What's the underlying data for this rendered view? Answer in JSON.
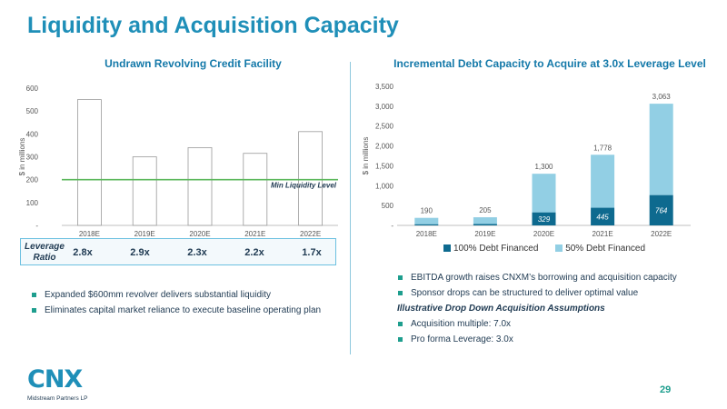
{
  "page": {
    "title": "Liquidity and Acquisition Capacity",
    "page_number": "29",
    "logo": {
      "text": "CNX",
      "subtitle": "Midstream Partners LP"
    }
  },
  "leverage": {
    "label": "Leverage Ratio",
    "values": [
      "2.8x",
      "2.9x",
      "2.3x",
      "2.2x",
      "1.7x"
    ]
  },
  "left_bullets": [
    "Expanded $600mm revolver delivers substantial liquidity",
    "Eliminates capital market reliance to execute baseline operating plan"
  ],
  "right_bullets": {
    "items": [
      "EBITDA growth raises CNXM’s borrowing and acquisition capacity",
      "Sponsor drops can be structured to deliver optimal value"
    ],
    "assumptions_heading": "Illustrative Drop Down Acquisition Assumptions",
    "assumptions": [
      "Acquisition multiple: 7.0x",
      "Pro forma Leverage: 3.0x"
    ]
  },
  "colors": {
    "brand": "#1f8fb8",
    "chart_title": "#1479a9",
    "bar_outline": "#9a9a9a",
    "min_line": "#5cb85c",
    "dark_series": "#0e6a8f",
    "light_series": "#92cfe4",
    "bullet": "#1e9e8e"
  },
  "chart_data": [
    {
      "type": "bar",
      "title": "Undrawn Revolving Credit Facility",
      "ylabel": "$ in millions",
      "categories": [
        "2018E",
        "2019E",
        "2020E",
        "2021E",
        "2022E"
      ],
      "values": [
        550,
        300,
        340,
        315,
        410
      ],
      "ylim": [
        0,
        600
      ],
      "yticks": [
        0,
        100,
        200,
        300,
        400,
        500,
        600
      ],
      "ytick_labels": [
        "-",
        "100",
        "200",
        "300",
        "400",
        "500",
        "600"
      ],
      "reference_line": {
        "value": 200,
        "label": "Min Liquidity Level"
      },
      "grid": false
    },
    {
      "type": "bar",
      "stacked": true,
      "title": "Incremental Debt Capacity to Acquire at 3.0x Leverage Level",
      "ylabel": "$ in millions",
      "categories": [
        "2018E",
        "2019E",
        "2020E",
        "2021E",
        "2022E"
      ],
      "series": [
        {
          "name": "100% Debt Financed",
          "values": [
            30,
            35,
            329,
            445,
            764
          ],
          "labels": [
            "",
            "",
            "329",
            "445",
            "764"
          ]
        },
        {
          "name": "50% Debt Financed",
          "values": [
            160,
            170,
            971,
            1333,
            2299
          ]
        }
      ],
      "totals": [
        "190",
        "205",
        "1,300",
        "1,778",
        "3,063"
      ],
      "ylim": [
        0,
        3500
      ],
      "yticks": [
        0,
        500,
        1000,
        1500,
        2000,
        2500,
        3000,
        3500
      ],
      "ytick_labels": [
        "-",
        "500",
        "1,000",
        "1,500",
        "2,000",
        "2,500",
        "3,000",
        "3,500"
      ],
      "legend": "bottom",
      "grid": false
    }
  ]
}
